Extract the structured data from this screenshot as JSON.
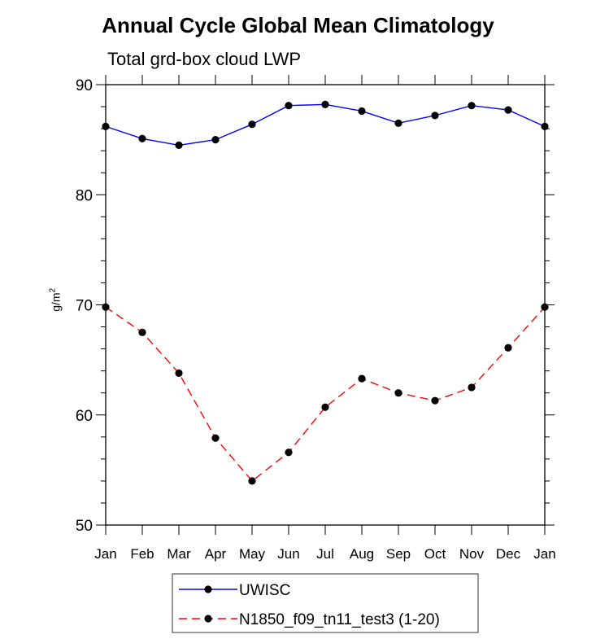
{
  "chart_data": {
    "type": "line",
    "title": "Annual Cycle Global Mean Climatology",
    "subtitle": "Total grd-box cloud LWP",
    "ylabel": "g/m",
    "ylabel_sup": "2",
    "xlabel": "",
    "categories": [
      "Jan",
      "Feb",
      "Mar",
      "Apr",
      "May",
      "Jun",
      "Jul",
      "Aug",
      "Sep",
      "Oct",
      "Nov",
      "Dec",
      "Jan"
    ],
    "ylim": [
      50,
      90
    ],
    "yticks": [
      50,
      60,
      70,
      80,
      90
    ],
    "series": [
      {
        "name": "UWISC",
        "color": "#0000ff",
        "dashed": false,
        "values": [
          86.2,
          85.1,
          84.5,
          85.0,
          86.4,
          88.1,
          88.2,
          87.6,
          86.5,
          87.2,
          88.1,
          87.7,
          86.2
        ]
      },
      {
        "name": "N1850_f09_tn11_test3 (1-20)",
        "color": "#ff0000",
        "dashed": true,
        "values": [
          69.8,
          67.5,
          63.8,
          57.9,
          54.0,
          56.6,
          60.7,
          63.3,
          62.0,
          61.3,
          62.5,
          66.1,
          69.8
        ]
      }
    ],
    "legend": "bottom-center"
  }
}
